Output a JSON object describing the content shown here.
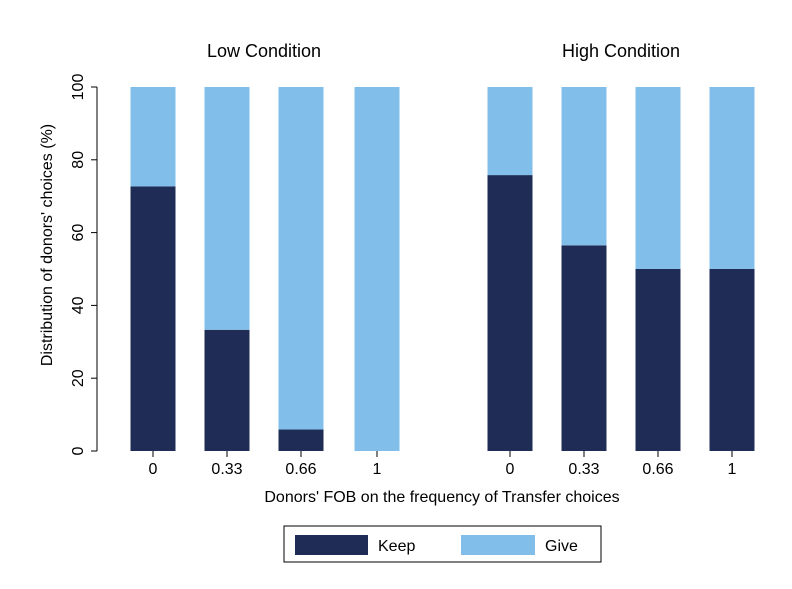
{
  "chart_data": {
    "type": "bar",
    "stacked": true,
    "panels": [
      {
        "title": "Low Condition",
        "categories": [
          "0",
          "0.33",
          "0.66",
          "1"
        ],
        "series": [
          {
            "name": "Keep",
            "values": [
              72.7,
              33.3,
              5.9,
              0
            ]
          },
          {
            "name": "Give",
            "values": [
              27.3,
              66.7,
              94.1,
              100
            ]
          }
        ]
      },
      {
        "title": "High Condition",
        "categories": [
          "0",
          "0.33",
          "0.66",
          "1"
        ],
        "series": [
          {
            "name": "Keep",
            "values": [
              75.8,
              56.5,
              50,
              50
            ]
          },
          {
            "name": "Give",
            "values": [
              24.2,
              43.5,
              50,
              50
            ]
          }
        ]
      }
    ],
    "xlabel": "Donors' FOB on the frequency of Transfer choices",
    "ylabel": "Distribution of donors' choices (%)",
    "ylim": [
      0,
      100
    ],
    "yticks": [
      0,
      20,
      40,
      60,
      80,
      100
    ],
    "grid": false,
    "legend": {
      "position": "bottom-center",
      "entries": [
        "Keep",
        "Give"
      ]
    },
    "colors": {
      "Keep": "#1f2c56",
      "Give": "#81bfea"
    }
  }
}
